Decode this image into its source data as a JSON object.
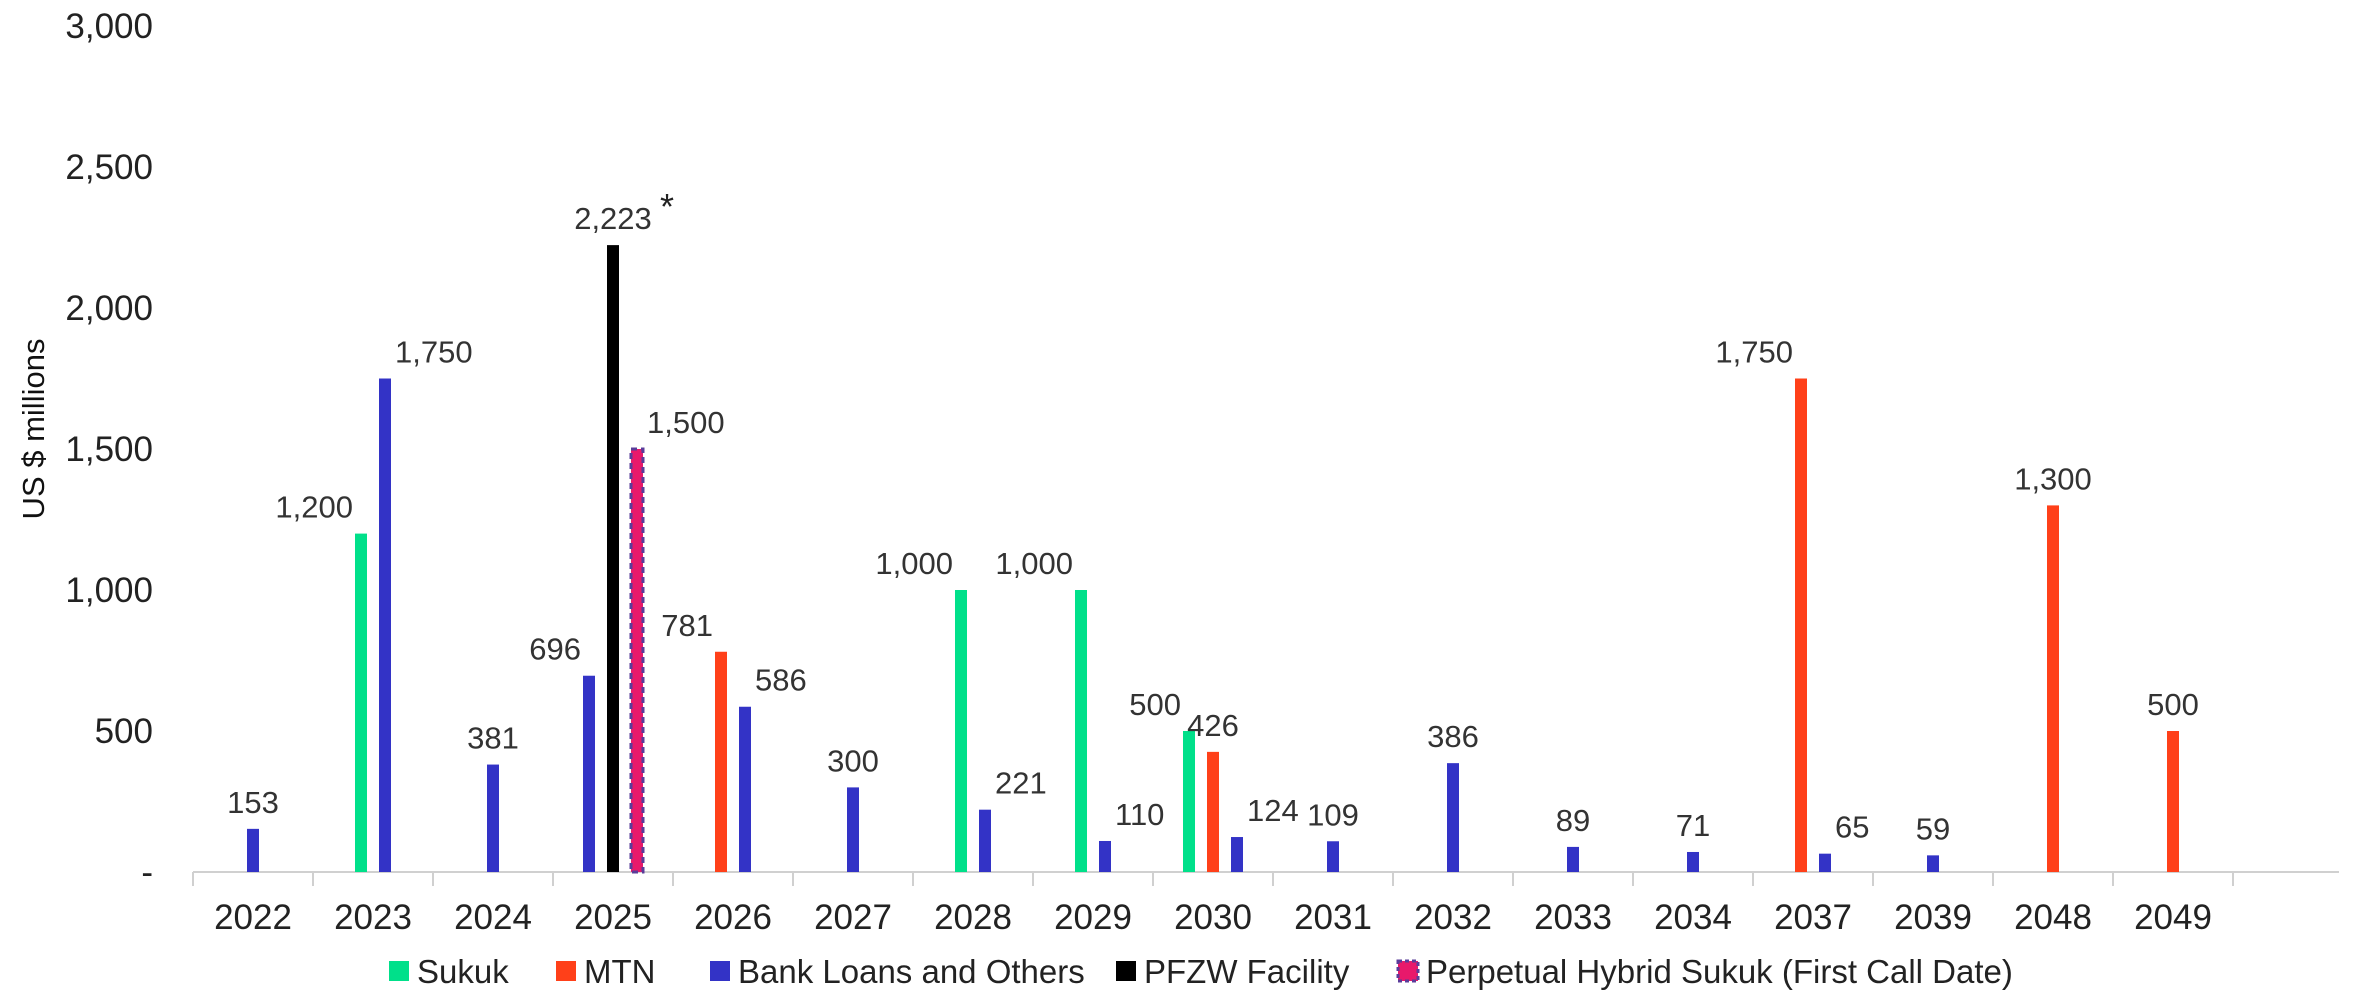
{
  "chart_data": {
    "type": "bar",
    "title": "",
    "xlabel": "",
    "ylabel": "US $ millions",
    "ylim": [
      0,
      3000
    ],
    "yticks": [
      {
        "value": 0,
        "label": "-"
      },
      {
        "value": 500,
        "label": "500"
      },
      {
        "value": 1000,
        "label": "1,000"
      },
      {
        "value": 1500,
        "label": "1,500"
      },
      {
        "value": 2000,
        "label": "2,000"
      },
      {
        "value": 2500,
        "label": "2,500"
      },
      {
        "value": 3000,
        "label": "3,000"
      }
    ],
    "categories": [
      "2022",
      "2023",
      "2024",
      "2025",
      "2026",
      "2027",
      "2028",
      "2029",
      "2030",
      "2031",
      "2032",
      "2033",
      "2034",
      "2037",
      "2039",
      "2048",
      "2049"
    ],
    "series": [
      {
        "name": "Sukuk",
        "color": "#00E08A",
        "values": [
          null,
          1200,
          null,
          null,
          null,
          null,
          1000,
          1000,
          500,
          null,
          null,
          null,
          null,
          null,
          null,
          null,
          null
        ],
        "labels": [
          null,
          "1,200",
          null,
          null,
          null,
          null,
          "1,000",
          "1,000",
          "500",
          null,
          null,
          null,
          null,
          null,
          null,
          null,
          null
        ]
      },
      {
        "name": "MTN",
        "color": "#FF4019",
        "values": [
          null,
          null,
          null,
          null,
          781,
          null,
          null,
          null,
          426,
          null,
          null,
          null,
          null,
          1750,
          null,
          1300,
          500
        ],
        "labels": [
          null,
          null,
          null,
          null,
          "781",
          null,
          null,
          null,
          "426",
          null,
          null,
          null,
          null,
          "1,750",
          null,
          "1,300",
          "500"
        ]
      },
      {
        "name": "Bank Loans and Others",
        "color": "#3333C6",
        "values": [
          153,
          1750,
          381,
          696,
          586,
          300,
          221,
          110,
          124,
          109,
          386,
          89,
          71,
          65,
          59,
          null,
          null
        ],
        "labels": [
          "153",
          "1,750",
          "381",
          "696",
          "586",
          "300",
          "221",
          "110",
          "124",
          "109",
          "386",
          "89",
          "71",
          "65",
          "59",
          null,
          null
        ]
      },
      {
        "name": "PFZW Facility",
        "color": "#000000",
        "values": [
          null,
          null,
          null,
          2223,
          null,
          null,
          null,
          null,
          null,
          null,
          null,
          null,
          null,
          null,
          null,
          null,
          null
        ],
        "labels": [
          null,
          null,
          null,
          "2,223",
          null,
          null,
          null,
          null,
          null,
          null,
          null,
          null,
          null,
          null,
          null,
          null,
          null
        ]
      },
      {
        "name": "Perpetual Hybrid Sukuk (First Call Date)",
        "color": "#E8196B",
        "border_color": "#5A3C9A",
        "values": [
          null,
          null,
          null,
          1500,
          null,
          null,
          null,
          null,
          null,
          null,
          null,
          null,
          null,
          null,
          null,
          null,
          null
        ],
        "labels": [
          null,
          null,
          null,
          "1,500",
          null,
          null,
          null,
          null,
          null,
          null,
          null,
          null,
          null,
          null,
          null,
          null,
          null
        ]
      }
    ],
    "annotations": [
      {
        "category": "2025",
        "series": "PFZW Facility",
        "text": "*"
      }
    ],
    "legend": {
      "position": "bottom"
    },
    "grid": false
  }
}
